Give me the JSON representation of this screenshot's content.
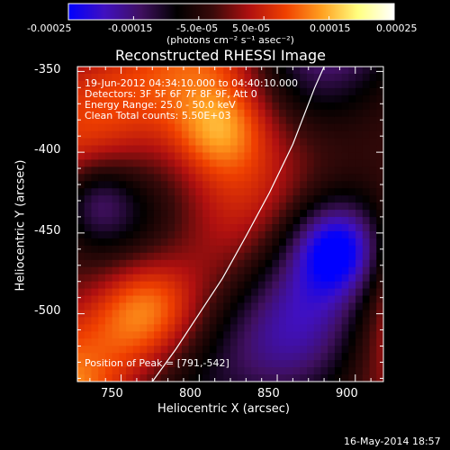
{
  "chart_data": {
    "type": "heatmap",
    "title": "Reconstructed RHESSI Image",
    "xlabel": "Heliocentric X (arcsec)",
    "ylabel": "Heliocentric Y (arcsec)",
    "xlim": [
      722,
      918
    ],
    "ylim": [
      -542,
      -347
    ],
    "xticks": [
      750,
      800,
      850,
      900
    ],
    "yticks": [
      -350,
      -400,
      -450,
      -500
    ],
    "colorbar": {
      "range": [
        -0.00025,
        0.00025
      ],
      "ticks": [
        "-0.00025",
        "-0.00015",
        "-5.0e-05",
        "5.0e-05",
        "0.00015",
        "0.00025"
      ],
      "label": "(photons cm⁻² s⁻¹ asec⁻²)",
      "colors": [
        "#0000ff",
        "#4010c0",
        "#401060",
        "#000000",
        "#3a0a0a",
        "#b01010",
        "#f04000",
        "#ffa020",
        "#ffff80",
        "#ffffff"
      ]
    },
    "annotations": [
      "19-Jun-2012 04:34:10.000 to 04:40:10.000",
      "Detectors: 3F 5F 6F 7F 8F 9F, Att 0",
      "Energy Range: 25.0 - 50.0 keV",
      "Clean    Total counts: 5.50E+03"
    ],
    "peak_label": "Position of Peak = [791,-542]",
    "peak": [
      791,
      -542
    ],
    "limb_curve": [
      [
        770,
        -542
      ],
      [
        785,
        -522
      ],
      [
        800,
        -500
      ],
      [
        815,
        -478
      ],
      [
        830,
        -452
      ],
      [
        845,
        -425
      ],
      [
        860,
        -395
      ],
      [
        874,
        -360
      ],
      [
        880,
        -347
      ]
    ],
    "date_stamp": "16-May-2014 18:57"
  }
}
